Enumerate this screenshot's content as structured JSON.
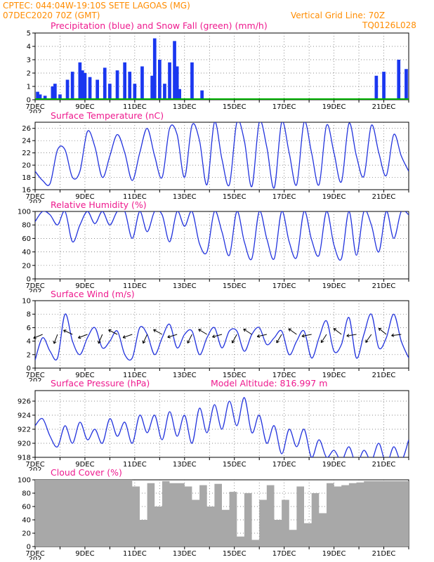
{
  "header": {
    "line1_left": "CPTEC:   044:04W-19:10S   SETE LAGOAS (MG)",
    "line2_left": "07DEC2020 70Z (GMT)",
    "line2_right": "Vertical Grid Line: 70Z",
    "line3_right": "TQ0126L028"
  },
  "colors": {
    "precip": "#1a37f0",
    "snow": "#00b000",
    "line": "#2233dd",
    "cloud": "#a8a8a8",
    "title": "#ee1a8e",
    "header": "#ff8c00",
    "grid": "#666666"
  },
  "x_axis": {
    "start": "07DEC",
    "end": "22DEC",
    "labels": [
      "7DEC",
      "9DEC",
      "11DEC",
      "13DEC",
      "15DEC",
      "17DEC",
      "19DEC",
      "21DEC"
    ],
    "cutoff_label": "202"
  },
  "chart_data": [
    {
      "type": "bar",
      "title": "Precipitation (blue) and Snow Fall (green) (mm/h)",
      "ylim": [
        0,
        5
      ],
      "yticks": [
        0,
        1,
        2,
        3,
        4,
        5
      ],
      "grid": "dotted",
      "series": [
        {
          "name": "Precipitation",
          "color": "#1a37f0",
          "x_days": [
            0.1,
            0.2,
            0.4,
            0.7,
            0.8,
            1.0,
            1.3,
            1.5,
            1.8,
            1.9,
            2.0,
            2.2,
            2.5,
            2.8,
            3.0,
            3.3,
            3.6,
            3.8,
            4.0,
            4.3,
            4.7,
            4.8,
            5.0,
            5.2,
            5.4,
            5.6,
            5.7,
            5.8,
            6.3,
            6.7,
            13.7,
            14.0,
            14.6,
            14.9,
            15.1,
            15.4,
            15.6,
            15.8
          ],
          "values": [
            0.6,
            0.4,
            0.3,
            1.0,
            1.2,
            0.4,
            1.5,
            2.1,
            2.8,
            2.2,
            2.0,
            1.7,
            1.5,
            2.4,
            1.2,
            2.2,
            2.8,
            2.1,
            1.2,
            2.5,
            1.8,
            4.6,
            3.0,
            1.2,
            2.8,
            4.4,
            2.5,
            0.8,
            2.8,
            0.7,
            1.8,
            2.1,
            3.0,
            2.3,
            1.2,
            1.7,
            2.2,
            1.6
          ]
        },
        {
          "name": "Snow Fall",
          "color": "#00b000",
          "x_days": [
            0.0,
            15.0
          ],
          "values": [
            0.0,
            0.0
          ]
        }
      ]
    },
    {
      "type": "line",
      "title": "Surface Temperature (nC)",
      "ylim": [
        16,
        27
      ],
      "yticks": [
        16,
        18,
        20,
        22,
        24,
        26
      ],
      "grid": "dotted",
      "x_days": [
        0.0,
        0.3,
        0.6,
        0.9,
        1.2,
        1.5,
        1.8,
        2.1,
        2.4,
        2.7,
        3.0,
        3.3,
        3.6,
        3.9,
        4.2,
        4.5,
        4.8,
        5.1,
        5.4,
        5.7,
        6.0,
        6.3,
        6.6,
        6.9,
        7.2,
        7.5,
        7.8,
        8.1,
        8.4,
        8.7,
        9.0,
        9.3,
        9.6,
        9.9,
        10.2,
        10.5,
        10.8,
        11.1,
        11.4,
        11.7,
        12.0,
        12.3,
        12.6,
        12.9,
        13.2,
        13.5,
        13.8,
        14.1,
        14.4,
        14.7,
        15.0
      ],
      "values": [
        19,
        17.5,
        17,
        22.5,
        22.5,
        18,
        19,
        25.5,
        23,
        18,
        21.5,
        25,
        22,
        17.5,
        22,
        26,
        21.5,
        18,
        26,
        25,
        18,
        26.5,
        24,
        16.8,
        27,
        21,
        16.8,
        27,
        24,
        16.5,
        27,
        23,
        16.3,
        27,
        22,
        16.8,
        27,
        22,
        16.8,
        26.5,
        22,
        17.3,
        26.8,
        21.5,
        18.2,
        26.5,
        22,
        18.3,
        25,
        21.5,
        19
      ]
    },
    {
      "type": "line",
      "title": "Relative Humidity (%)",
      "ylim": [
        0,
        100
      ],
      "yticks": [
        0,
        20,
        40,
        60,
        80,
        100
      ],
      "grid": "dotted",
      "x_days": [
        0.0,
        0.3,
        0.6,
        0.9,
        1.2,
        1.5,
        1.8,
        2.1,
        2.4,
        2.7,
        3.0,
        3.3,
        3.6,
        3.9,
        4.2,
        4.5,
        4.8,
        5.1,
        5.4,
        5.7,
        6.0,
        6.3,
        6.6,
        6.9,
        7.2,
        7.5,
        7.8,
        8.1,
        8.4,
        8.7,
        9.0,
        9.3,
        9.6,
        9.9,
        10.2,
        10.5,
        10.8,
        11.1,
        11.4,
        11.7,
        12.0,
        12.3,
        12.6,
        12.9,
        13.2,
        13.5,
        13.8,
        14.1,
        14.4,
        14.7,
        15.0
      ],
      "values": [
        85,
        100,
        95,
        80,
        100,
        55,
        80,
        100,
        82,
        100,
        80,
        100,
        100,
        60,
        100,
        70,
        100,
        95,
        55,
        100,
        78,
        100,
        52,
        40,
        100,
        70,
        35,
        100,
        55,
        30,
        100,
        60,
        30,
        100,
        55,
        32,
        100,
        58,
        35,
        100,
        50,
        30,
        100,
        35,
        100,
        80,
        40,
        100,
        60,
        100,
        95
      ]
    },
    {
      "type": "line",
      "title": "Surface Wind (m/s)",
      "ylim": [
        0,
        10
      ],
      "yticks": [
        0,
        2,
        4,
        6,
        8,
        10
      ],
      "grid": "dotted",
      "x_days": [
        0.0,
        0.3,
        0.6,
        0.9,
        1.2,
        1.5,
        1.8,
        2.1,
        2.4,
        2.7,
        3.0,
        3.3,
        3.6,
        3.9,
        4.2,
        4.5,
        4.8,
        5.1,
        5.4,
        5.7,
        6.0,
        6.3,
        6.6,
        6.9,
        7.2,
        7.5,
        7.8,
        8.1,
        8.4,
        8.7,
        9.0,
        9.3,
        9.6,
        9.9,
        10.2,
        10.5,
        10.8,
        11.1,
        11.4,
        11.7,
        12.0,
        12.3,
        12.6,
        12.9,
        13.2,
        13.5,
        13.8,
        14.1,
        14.4,
        14.7,
        15.0
      ],
      "values": [
        1.2,
        4.5,
        2.5,
        1.5,
        8.0,
        4.0,
        2.0,
        4.5,
        6.0,
        3.0,
        4.0,
        5.5,
        2.0,
        1.5,
        6.0,
        5.0,
        2.0,
        4.5,
        6.5,
        3.0,
        5.0,
        5.5,
        2.0,
        4.5,
        6.0,
        3.0,
        5.5,
        5.5,
        2.5,
        5.0,
        6.0,
        3.5,
        4.5,
        5.5,
        2.0,
        4.0,
        5.5,
        1.5,
        4.5,
        7.0,
        2.5,
        3.5,
        7.5,
        1.5,
        5.0,
        8.0,
        3.0,
        4.5,
        8.0,
        4.0,
        1.5
      ]
    },
    {
      "type": "line",
      "title": "Surface Pressure (hPa)",
      "subtitle": "Model Altitude: 816.997 m",
      "ylim": [
        918,
        927.5
      ],
      "yticks": [
        918,
        920,
        922,
        924,
        926
      ],
      "grid": "dotted",
      "x_days": [
        0.0,
        0.3,
        0.6,
        0.9,
        1.2,
        1.5,
        1.8,
        2.1,
        2.4,
        2.7,
        3.0,
        3.3,
        3.6,
        3.9,
        4.2,
        4.5,
        4.8,
        5.1,
        5.4,
        5.7,
        6.0,
        6.3,
        6.6,
        6.9,
        7.2,
        7.5,
        7.8,
        8.1,
        8.4,
        8.7,
        9.0,
        9.3,
        9.6,
        9.9,
        10.2,
        10.5,
        10.8,
        11.1,
        11.4,
        11.7,
        12.0,
        12.3,
        12.6,
        12.9,
        13.2,
        13.5,
        13.8,
        14.1,
        14.4,
        14.7,
        15.0
      ],
      "values": [
        922.5,
        923.5,
        921.0,
        919.5,
        922.5,
        920.0,
        923.0,
        920.5,
        922.0,
        920.0,
        923.5,
        921.0,
        923.0,
        920.0,
        924.0,
        921.5,
        924.0,
        920.5,
        924.5,
        921.0,
        924.0,
        920.0,
        925.0,
        921.5,
        925.5,
        922.0,
        926.0,
        922.5,
        926.5,
        921.5,
        924.0,
        920.0,
        922.5,
        918.5,
        922.0,
        919.5,
        922.0,
        918.0,
        920.5,
        918.0,
        919.0,
        917.5,
        919.5,
        917.0,
        919.0,
        917.5,
        920.0,
        917.0,
        919.5,
        917.5,
        920.5
      ]
    },
    {
      "type": "area",
      "title": "Cloud Cover (%)",
      "ylim": [
        0,
        100
      ],
      "yticks": [
        0,
        20,
        40,
        60,
        80,
        100
      ],
      "grid": "dotted",
      "x_days": [
        0.0,
        0.3,
        0.6,
        0.9,
        1.2,
        1.5,
        1.8,
        2.1,
        2.4,
        2.7,
        3.0,
        3.3,
        3.6,
        3.9,
        4.2,
        4.5,
        4.8,
        5.1,
        5.4,
        5.7,
        6.0,
        6.3,
        6.6,
        6.9,
        7.2,
        7.5,
        7.8,
        8.1,
        8.4,
        8.7,
        9.0,
        9.3,
        9.6,
        9.9,
        10.2,
        10.5,
        10.8,
        11.1,
        11.4,
        11.7,
        12.0,
        12.3,
        12.6,
        12.9,
        13.2,
        13.5,
        13.8,
        14.1,
        14.4,
        14.7,
        15.0
      ],
      "values": [
        100,
        100,
        100,
        100,
        100,
        100,
        100,
        100,
        100,
        100,
        100,
        100,
        100,
        90,
        40,
        95,
        60,
        98,
        95,
        95,
        90,
        70,
        92,
        60,
        94,
        55,
        82,
        15,
        80,
        10,
        70,
        92,
        40,
        70,
        25,
        90,
        35,
        80,
        50,
        95,
        90,
        92,
        95,
        96,
        98,
        98,
        98,
        98,
        98,
        98,
        98
      ]
    }
  ],
  "panels": [
    {
      "id": "precip",
      "title": "Precipitation (blue) and Snow Fall (green) (mm/h)",
      "yticks": [
        "0",
        "1",
        "2",
        "3",
        "4",
        "5"
      ]
    },
    {
      "id": "temp",
      "title": "Surface Temperature (nC)",
      "yticks": [
        "16",
        "18",
        "20",
        "22",
        "24",
        "26"
      ]
    },
    {
      "id": "rh",
      "title": "Relative Humidity (%)",
      "yticks": [
        "0",
        "20",
        "40",
        "60",
        "80",
        "100"
      ]
    },
    {
      "id": "wind",
      "title": "Surface Wind (m/s)",
      "yticks": [
        "0",
        "2",
        "4",
        "6",
        "8",
        "10"
      ]
    },
    {
      "id": "pres",
      "title": "Surface Pressure (hPa)",
      "subtitle": "Model Altitude: 816.997 m",
      "yticks": [
        "918",
        "920",
        "922",
        "924",
        "926"
      ]
    },
    {
      "id": "cloud",
      "title": "Cloud Cover (%)",
      "yticks": [
        "0",
        "20",
        "40",
        "60",
        "80",
        "100"
      ]
    }
  ]
}
